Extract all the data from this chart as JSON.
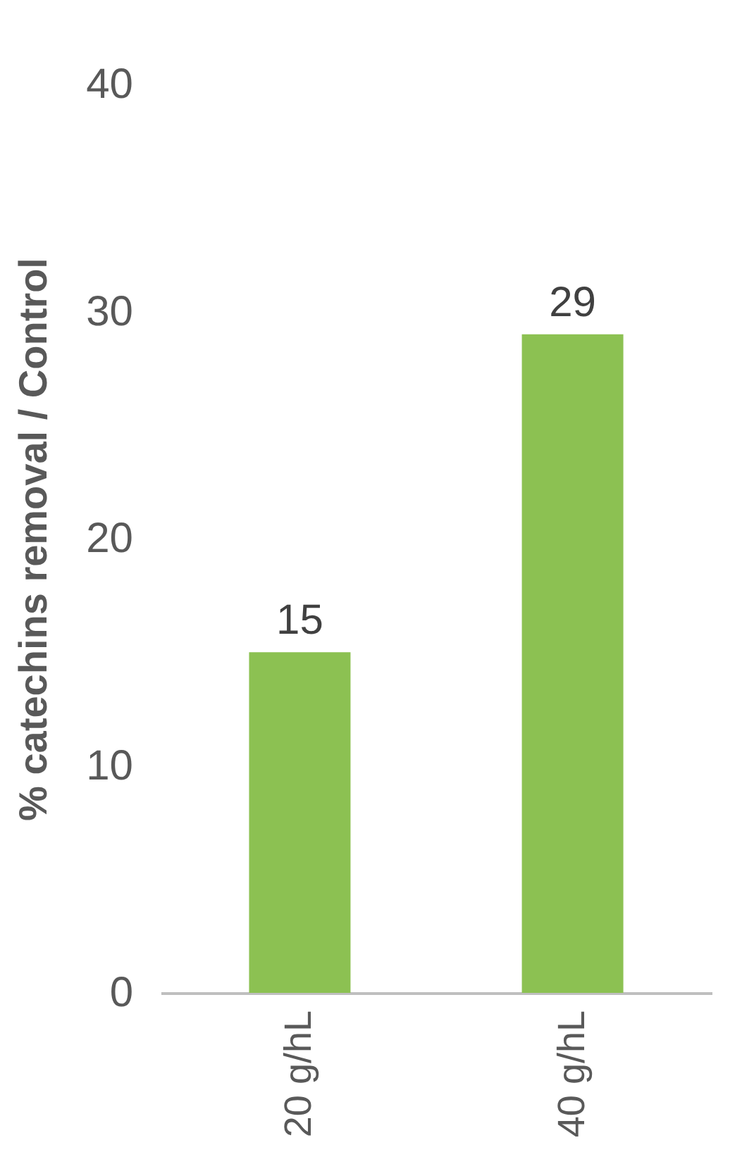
{
  "chart_data": {
    "type": "bar",
    "ylabel": "% catechins removal / Control",
    "categories": [
      "20 g/hL",
      "40 g/hL"
    ],
    "values": [
      15,
      29
    ],
    "color": "#8cc152",
    "ylim": [
      0,
      40
    ],
    "yticks": [
      0,
      10,
      20,
      30,
      40
    ],
    "grid": false,
    "data_labels": true
  }
}
